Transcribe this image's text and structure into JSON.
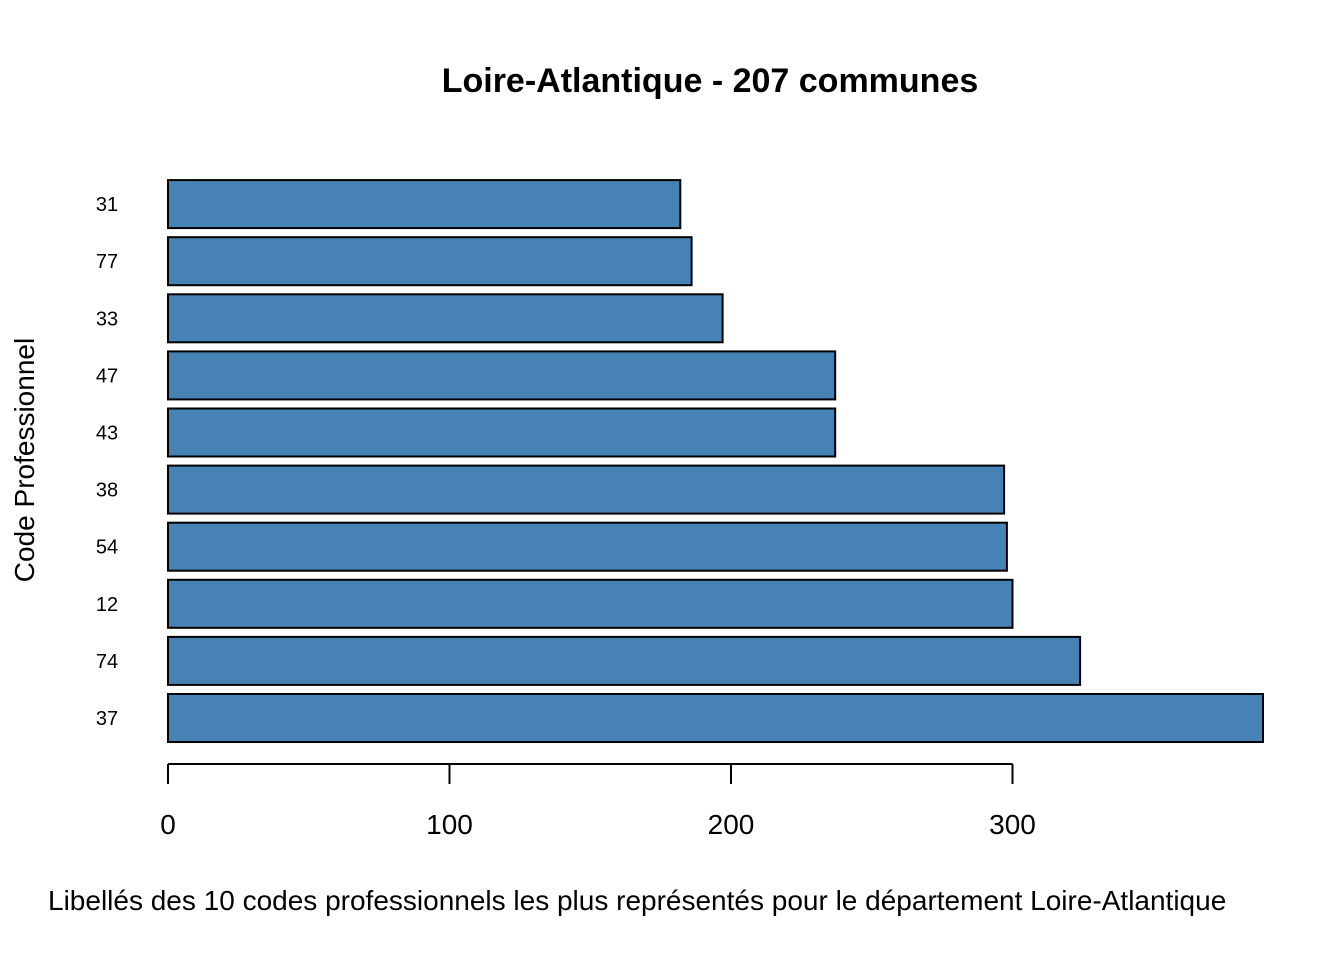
{
  "chart_data": {
    "type": "bar",
    "orientation": "horizontal",
    "title": "Loire-Atlantique - 207 communes",
    "xlabel": "Libellés des 10 codes professionnels les plus représentés pour le département Loire-Atlantique",
    "ylabel": "Code Professionnel",
    "categories": [
      "37",
      "74",
      "12",
      "54",
      "38",
      "43",
      "47",
      "33",
      "77",
      "31"
    ],
    "values": [
      389,
      324,
      300,
      298,
      297,
      237,
      237,
      197,
      186,
      182
    ],
    "xlim": [
      0,
      389
    ],
    "xticks": [
      0,
      100,
      200,
      300
    ],
    "bar_color": "#4682B4",
    "bar_border_color": "#000000",
    "grid": false,
    "legend": "none"
  }
}
